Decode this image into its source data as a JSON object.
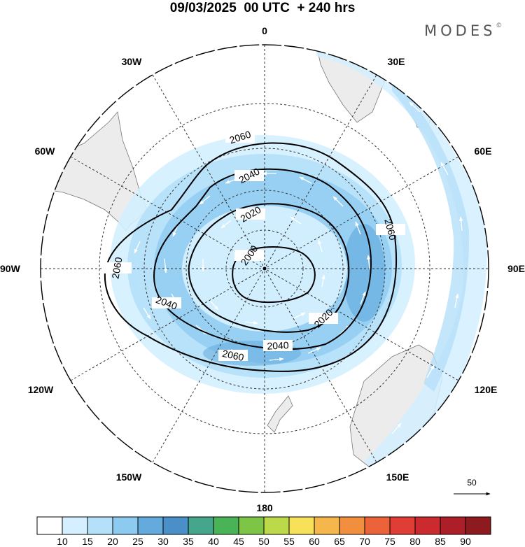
{
  "title": "09/03/2025  00 UTC  + 240 hrs",
  "brand": "MODES",
  "brand_mark": "©",
  "projection": "south-polar-stereographic",
  "longitude_labels": {
    "top": "0",
    "bottom": "180",
    "left": "90W",
    "right": "90E",
    "upper_left_1": "30W",
    "upper_left_2": "60W",
    "upper_right_1": "30E",
    "upper_right_2": "60E",
    "lower_left_1": "120W",
    "lower_left_2": "150W",
    "lower_right_1": "120E",
    "lower_right_2": "150E"
  },
  "contour_labels": [
    "2000",
    "2020",
    "2040",
    "2060"
  ],
  "reference_vector": {
    "value": "50"
  },
  "colorbar": {
    "labels": [
      "10",
      "15",
      "20",
      "25",
      "30",
      "35",
      "40",
      "45",
      "50",
      "55",
      "60",
      "65",
      "70",
      "75",
      "80",
      "85",
      "90"
    ],
    "colors": [
      "#ffffff",
      "#d4efff",
      "#b5e0fa",
      "#8ccaf0",
      "#64aadd",
      "#4a8fc8",
      "#45a68c",
      "#4bb357",
      "#7cc547",
      "#bcd94a",
      "#f6e158",
      "#f5b74b",
      "#f18f3f",
      "#ec633a",
      "#df3d36",
      "#cb2a2f",
      "#ac1e28",
      "#8c1a1f"
    ]
  },
  "colors": {
    "land": "#ececec",
    "coast": "#777777",
    "contour": "#000000",
    "grid": "#333333"
  }
}
